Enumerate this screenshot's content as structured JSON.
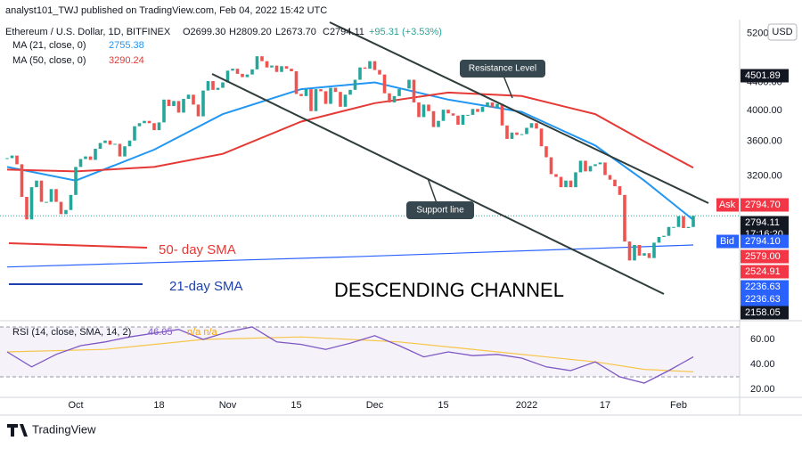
{
  "header": {
    "publisher": "analyst101_TWJ published on TradingView.com, Feb 04, 2022 15:42 UTC",
    "currency": "USD",
    "brand": "TradingView"
  },
  "chart_data": {
    "type": "candlestick",
    "title": "Ethereum / U.S. Dollar, 1D, BITFINEX",
    "ohlc": [
      "O2699.30",
      "H2809.20",
      "L2673.70",
      "C2794.11",
      "+95.31 (+3.53%)"
    ],
    "log": true,
    "ylim": [
      1955,
      5449
    ],
    "yticks": [
      {
        "value": 5200,
        "label": "5200.00"
      },
      {
        "value": 4400,
        "label": "4400.00"
      },
      {
        "value": 4000,
        "label": "4000.00"
      },
      {
        "value": 3600,
        "label": "3600.00"
      },
      {
        "value": 3200,
        "label": "3200.00"
      }
    ],
    "xticks": [
      {
        "value": 14,
        "label": "Oct"
      },
      {
        "value": 31,
        "label": "18"
      },
      {
        "value": 45,
        "label": "Nov"
      },
      {
        "value": 59,
        "label": "15"
      },
      {
        "value": 75,
        "label": "Dec"
      },
      {
        "value": 89,
        "label": "15"
      },
      {
        "value": 106,
        "label": "2022"
      },
      {
        "value": 122,
        "label": "17"
      },
      {
        "value": 137,
        "label": "Feb"
      }
    ],
    "up_color": "#26a69a",
    "down_color": "#ef5350",
    "close": [
      3400,
      3430,
      3330,
      2980,
      2760,
      3080,
      3150,
      2930,
      2930,
      3060,
      2930,
      2810,
      2850,
      3000,
      3300,
      3390,
      3420,
      3380,
      3510,
      3580,
      3610,
      3560,
      3570,
      3420,
      3540,
      3610,
      3790,
      3830,
      3860,
      3830,
      3740,
      3840,
      4150,
      4060,
      4130,
      3970,
      4160,
      4220,
      4080,
      3920,
      4280,
      4420,
      4290,
      4320,
      4400,
      4580,
      4610,
      4530,
      4480,
      4520,
      4600,
      4810,
      4730,
      4630,
      4660,
      4560,
      4650,
      4610,
      4570,
      4230,
      4200,
      4300,
      3990,
      4300,
      4270,
      4090,
      4320,
      4260,
      4050,
      4220,
      4290,
      4440,
      4630,
      4610,
      4730,
      4590,
      4520,
      4240,
      4110,
      4200,
      4300,
      4310,
      4440,
      4110,
      3910,
      4080,
      3990,
      3780,
      3860,
      4010,
      3960,
      3930,
      3810,
      3940,
      3940,
      4020,
      3980,
      4050,
      4110,
      4040,
      4090,
      3800,
      3630,
      3710,
      3680,
      3690,
      3770,
      3830,
      3760,
      3540,
      3410,
      3220,
      3190,
      3080,
      3150,
      3080,
      3240,
      3370,
      3250,
      3310,
      3330,
      3350,
      3210,
      3160,
      3090,
      3000,
      2560,
      2400,
      2530,
      2440,
      2460,
      2420,
      2550,
      2600,
      2610,
      2690,
      2690,
      2790,
      2680,
      2690,
      2794.11
    ],
    "series": [
      {
        "name": "MA (21, close, 0)",
        "value_label": "2755.38",
        "color": "#2196f3",
        "x": [
          0,
          14,
          30,
          44,
          60,
          75,
          90,
          105,
          120,
          130,
          140
        ],
        "values": [
          3300,
          3150,
          3500,
          3950,
          4300,
          4400,
          4150,
          3980,
          3550,
          3150,
          2755.38
        ]
      },
      {
        "name": "MA (50, close, 0)",
        "value_label": "3290.24",
        "color": "#e53935",
        "x": [
          0,
          14,
          30,
          44,
          60,
          75,
          90,
          105,
          120,
          130,
          140
        ],
        "values": [
          3270,
          3250,
          3300,
          3450,
          3850,
          4100,
          4250,
          4200,
          3950,
          3600,
          3290.24
        ]
      },
      {
        "color": "#2962ff",
        "x": [
          0,
          70,
          140
        ],
        "values": [
          2347,
          2430,
          2530
        ]
      }
    ],
    "price_tags": [
      {
        "text": "4501.89",
        "color": "#131722"
      },
      {
        "label": "Ask",
        "text": "2794.70",
        "color": "#f23645"
      },
      {
        "text": "2794.11",
        "sub": "17:16:20",
        "color": "#131722"
      },
      {
        "label": "Bid",
        "text": "2794.10",
        "color": "#2962ff"
      },
      {
        "text": "2579.00",
        "color": "#f23645"
      },
      {
        "text": "2524.91",
        "color": "#f23645"
      },
      {
        "text": "2236.63",
        "color": "#2962ff"
      },
      {
        "text": "2236.63",
        "color": "#2962ff"
      },
      {
        "text": "2158.05",
        "color": "#131722"
      }
    ],
    "annotations": {
      "resistance": "Resistance Level",
      "support": "Support line",
      "sma50": "50- day SMA",
      "sma21": "21-day SMA",
      "channel": "DESCENDING CHANNEL"
    },
    "rsi": {
      "title": "RSI (14, close, SMA, 14, 2)",
      "value_label": "46.05",
      "na": "n/a n/a",
      "ylim": [
        14.3,
        73.6
      ],
      "bands": [
        30,
        70
      ],
      "yticks": [
        {
          "value": 60,
          "label": "60.00"
        },
        {
          "value": 40,
          "label": "40.00"
        },
        {
          "value": 20,
          "label": "20.00"
        }
      ],
      "line": {
        "color": "#7e57c2",
        "x": [
          0,
          5,
          10,
          15,
          20,
          25,
          30,
          35,
          40,
          45,
          50,
          55,
          60,
          65,
          70,
          75,
          80,
          85,
          90,
          95,
          100,
          105,
          110,
          115,
          120,
          125,
          130,
          135,
          140
        ],
        "values": [
          50,
          38,
          48,
          55,
          58,
          62,
          65,
          68,
          60,
          66,
          70,
          58,
          56,
          52,
          57,
          63,
          55,
          46,
          50,
          47,
          48,
          45,
          38,
          35,
          42,
          30,
          25,
          35,
          46.05
        ]
      },
      "ma": {
        "color": "#f7c548",
        "x": [
          0,
          20,
          40,
          60,
          80,
          100,
          120,
          130,
          140
        ],
        "values": [
          50,
          52,
          60,
          62,
          58,
          50,
          42,
          36,
          34
        ]
      }
    }
  }
}
